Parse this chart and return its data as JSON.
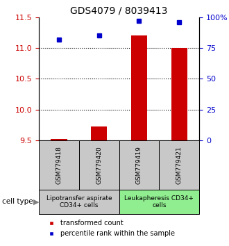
{
  "title": "GDS4079 / 8039413",
  "samples": [
    "GSM779418",
    "GSM779420",
    "GSM779419",
    "GSM779421"
  ],
  "red_values": [
    9.52,
    9.72,
    11.2,
    11.0
  ],
  "blue_values": [
    82,
    85,
    97,
    96
  ],
  "ylim_left": [
    9.5,
    11.5
  ],
  "ylim_right": [
    0,
    100
  ],
  "yticks_left": [
    9.5,
    10.0,
    10.5,
    11.0,
    11.5
  ],
  "yticks_right": [
    0,
    25,
    50,
    75,
    100
  ],
  "ytick_labels_right": [
    "0",
    "25",
    "50",
    "75",
    "100%"
  ],
  "dotted_lines": [
    10.0,
    10.5,
    11.0
  ],
  "group1_label": "Lipotransfer aspirate\nCD34+ cells",
  "group1_color": "#c8c8c8",
  "group2_label": "Leukapheresis CD34+\ncells",
  "group2_color": "#90ee90",
  "cell_type_label": "cell type",
  "legend_red": "transformed count",
  "legend_blue": "percentile rank within the sample",
  "bar_color": "#cc0000",
  "dot_color": "#0000cc",
  "left_tick_color": "#cc0000",
  "right_tick_color": "#0000cc",
  "title_fontsize": 10,
  "tick_fontsize": 8,
  "legend_fontsize": 7,
  "sample_fontsize": 6.5,
  "group_fontsize": 6.5
}
